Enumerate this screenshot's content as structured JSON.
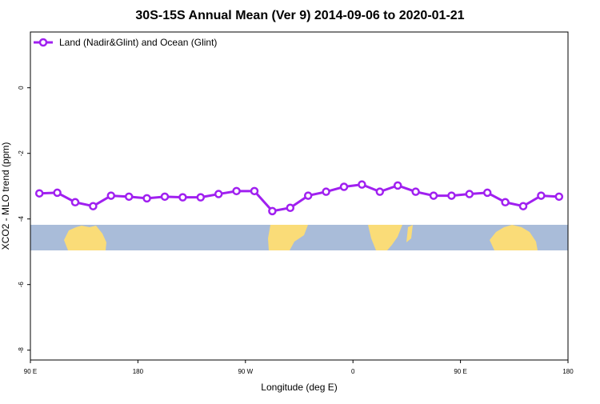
{
  "chart_data": {
    "type": "line",
    "title": "30S-15S Annual Mean (Ver 9)   2014-09-06 to 2020-01-21",
    "x_label": "Longitude (deg E)",
    "y_label": "XCO2 - MLO trend (ppm)",
    "x": [
      97.5,
      112.5,
      127.5,
      142.5,
      157.5,
      172.5,
      187.5,
      202.5,
      217.5,
      232.5,
      247.5,
      262.5,
      277.5,
      292.5,
      307.5,
      322.5,
      337.5,
      352.5,
      367.5,
      382.5,
      397.5,
      412.5,
      427.5,
      442.5,
      457.5,
      472.5,
      487.5,
      502.5,
      517.5,
      532.5
    ],
    "series": [
      {
        "name": "Land (Nadir&Glint) and Ocean (Glint)",
        "color": "#a020f0",
        "values": [
          -3.22,
          -3.2,
          -3.49,
          -3.61,
          -3.29,
          -3.32,
          -3.37,
          -3.32,
          -3.34,
          -3.34,
          -3.24,
          -3.15,
          -3.15,
          -3.76,
          -3.66,
          -3.29,
          -3.17,
          -3.02,
          -2.95,
          -3.17,
          -2.98,
          -3.17,
          -3.29,
          -3.29,
          -3.24,
          -3.2,
          -3.49,
          -3.61,
          -3.29,
          -3.32
        ]
      }
    ],
    "xlim": [
      90,
      540
    ],
    "xticks": [
      {
        "value": 90,
        "label": "90 E"
      },
      {
        "value": 180,
        "label": "180"
      },
      {
        "value": 270,
        "label": "90 W"
      },
      {
        "value": 360,
        "label": "0"
      },
      {
        "value": 450,
        "label": "90 E"
      },
      {
        "value": 540,
        "label": "180"
      }
    ],
    "ylim": [
      -8.3,
      1.7
    ],
    "yticks": [
      0,
      -2,
      -4,
      -6,
      -8
    ],
    "legend": "top-left"
  }
}
